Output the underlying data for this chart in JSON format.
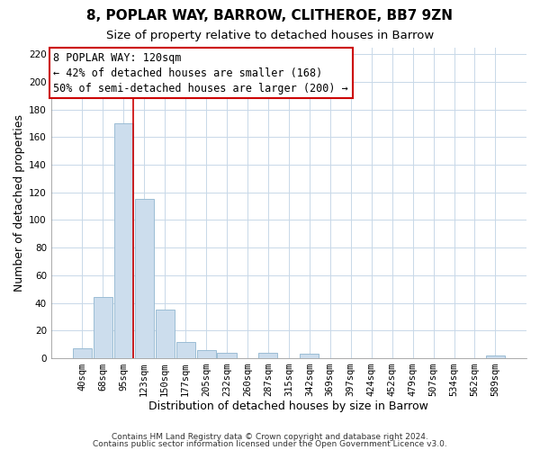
{
  "title": "8, POPLAR WAY, BARROW, CLITHEROE, BB7 9ZN",
  "subtitle": "Size of property relative to detached houses in Barrow",
  "xlabel": "Distribution of detached houses by size in Barrow",
  "ylabel": "Number of detached properties",
  "bin_labels": [
    "40sqm",
    "68sqm",
    "95sqm",
    "123sqm",
    "150sqm",
    "177sqm",
    "205sqm",
    "232sqm",
    "260sqm",
    "287sqm",
    "315sqm",
    "342sqm",
    "369sqm",
    "397sqm",
    "424sqm",
    "452sqm",
    "479sqm",
    "507sqm",
    "534sqm",
    "562sqm",
    "589sqm"
  ],
  "bar_heights": [
    7,
    44,
    170,
    115,
    35,
    12,
    6,
    4,
    0,
    4,
    0,
    3,
    0,
    0,
    0,
    0,
    0,
    0,
    0,
    0,
    2
  ],
  "bar_color": "#ccdded",
  "bar_edgecolor": "#9bbdd4",
  "vline_color": "#cc0000",
  "box_edgecolor": "#cc0000",
  "ylim": [
    0,
    225
  ],
  "yticks": [
    0,
    20,
    40,
    60,
    80,
    100,
    120,
    140,
    160,
    180,
    200,
    220
  ],
  "annotation_line1": "8 POPLAR WAY: 120sqm",
  "annotation_line2": "← 42% of detached houses are smaller (168)",
  "annotation_line3": "50% of semi-detached houses are larger (200) →",
  "footer_line1": "Contains HM Land Registry data © Crown copyright and database right 2024.",
  "footer_line2": "Contains public sector information licensed under the Open Government Licence v3.0.",
  "background_color": "#ffffff",
  "plot_background": "#ffffff",
  "grid_color": "#c8d8e8",
  "title_fontsize": 11,
  "subtitle_fontsize": 9.5,
  "axis_label_fontsize": 9,
  "tick_fontsize": 7.5,
  "footer_fontsize": 6.5,
  "annotation_fontsize": 8.5
}
